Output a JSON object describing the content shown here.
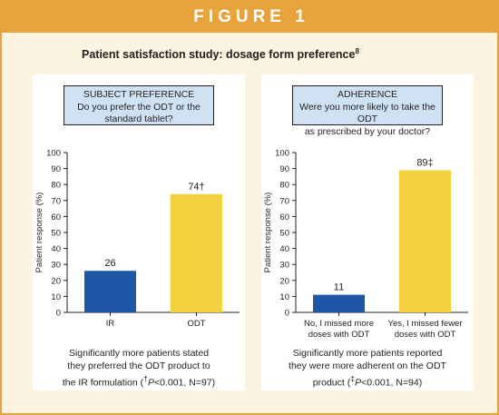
{
  "figure_title": "FIGURE 1",
  "study_title": "Patient satisfaction study: dosage form preference",
  "study_title_ref": "8",
  "colors": {
    "header": "#e8a33c",
    "background": "#fdf3e1",
    "box": "#cfe2f3",
    "bar_blue": "#1d57a5",
    "bar_yellow": "#f3d03e"
  },
  "panels": [
    {
      "box_title": "SUBJECT PREFERENCE",
      "question_line1": "Do you prefer the ODT or the",
      "question_line2": "standard tablet?",
      "note_line1": "Significantly more patients stated",
      "note_line2": "they preferred the ODT product to",
      "note_line3": "the IR formulation (",
      "note_mark": "†",
      "note_p": "P",
      "note_stat": "<0.001, N=97)"
    },
    {
      "box_title": "ADHERENCE",
      "question_line1": "Were you more likely to take the ODT",
      "question_line2": "as prescribed by your doctor?",
      "note_line1": "Significantly more patients reported",
      "note_line2": "they were more adherent on the ODT",
      "note_line3": "product (",
      "note_mark": "‡",
      "note_p": "P",
      "note_stat": "<0.001, N=94)"
    }
  ],
  "chart_data": [
    {
      "type": "bar",
      "ylabel": "Patient response (%)",
      "ylim": [
        0,
        100
      ],
      "yticks": [
        0,
        10,
        20,
        30,
        40,
        50,
        60,
        70,
        80,
        90,
        100
      ],
      "categories": [
        [
          "IR"
        ],
        [
          "ODT"
        ]
      ],
      "values": [
        26,
        74
      ],
      "data_labels": [
        "26",
        "74†"
      ],
      "colors": [
        "#1d57a5",
        "#f3d03e"
      ]
    },
    {
      "type": "bar",
      "ylabel": "Patient response (%)",
      "ylim": [
        0,
        100
      ],
      "yticks": [
        0,
        10,
        20,
        30,
        40,
        50,
        60,
        70,
        80,
        90,
        100
      ],
      "categories": [
        [
          "No, I missed more",
          "doses with ODT"
        ],
        [
          "Yes, I missed fewer",
          "doses with ODT"
        ]
      ],
      "values": [
        11,
        89
      ],
      "data_labels": [
        "11",
        "89‡"
      ],
      "colors": [
        "#1d57a5",
        "#f3d03e"
      ]
    }
  ]
}
